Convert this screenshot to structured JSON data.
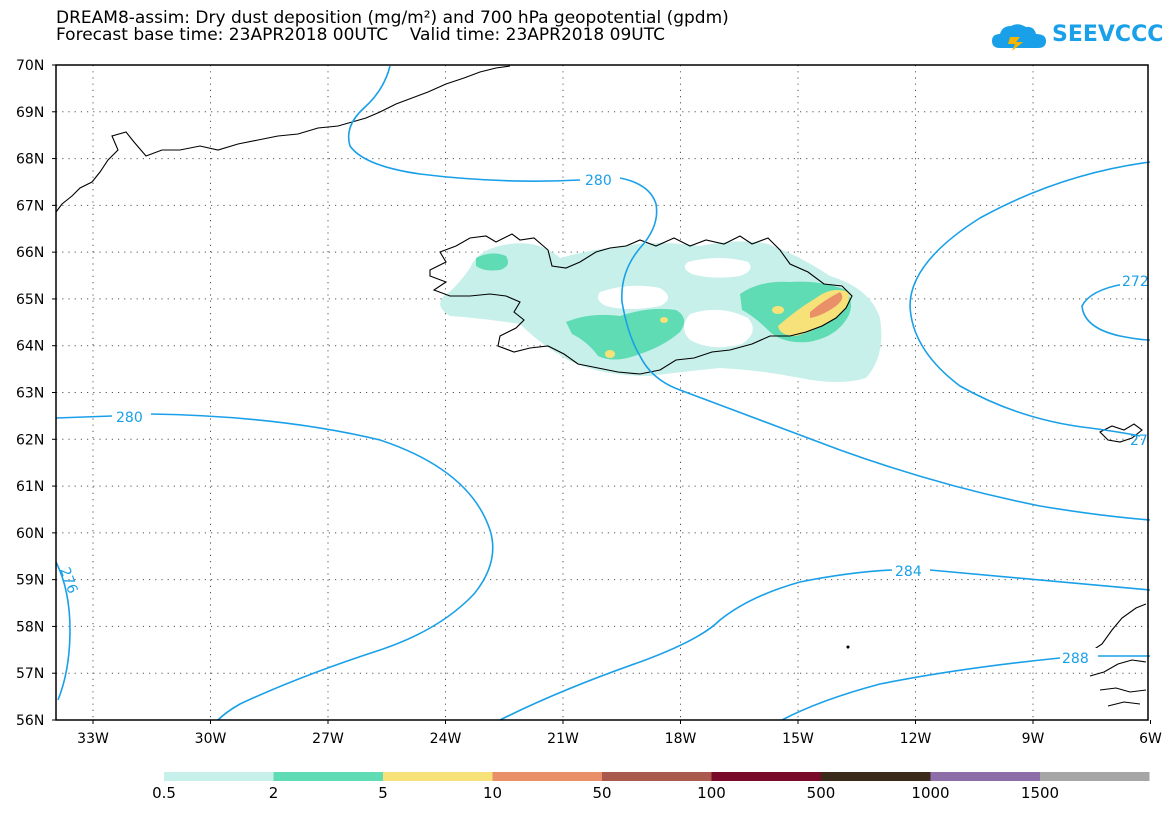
{
  "title": {
    "line1": "DREAM8-assim: Dry dust deposition (mg/m²) and 700 hPa geopotential (gpdm)",
    "line2": "Forecast base time: 23APR2018 00UTC    Valid time: 23APR2018 09UTC"
  },
  "logo": {
    "text": "SEEVCCC",
    "icon": "cloud-logo-icon",
    "color": "#1aa0e8"
  },
  "map": {
    "lat_labels": [
      "70N",
      "69N",
      "68N",
      "67N",
      "66N",
      "65N",
      "64N",
      "63N",
      "62N",
      "61N",
      "60N",
      "59N",
      "58N",
      "57N",
      "56N"
    ],
    "lon_labels": [
      "33W",
      "30W",
      "27W",
      "24W",
      "21W",
      "18W",
      "15W",
      "12W",
      "9W",
      "6W"
    ],
    "grid": "dotted",
    "contour_color": "#1aa0e8",
    "contour_labels": [
      "280",
      "280",
      "276",
      "284",
      "288",
      "272",
      "27"
    ]
  },
  "legend": {
    "colors": [
      "#c8f0ea",
      "#5fdcb4",
      "#f7e27a",
      "#ea9068",
      "#aa5a4c",
      "#7a0a2a",
      "#3a2a1a",
      "#8e6ea8",
      "#a6a6a6"
    ],
    "labels": [
      "0.5",
      "2",
      "5",
      "10",
      "50",
      "100",
      "500",
      "1000",
      "1500"
    ]
  }
}
